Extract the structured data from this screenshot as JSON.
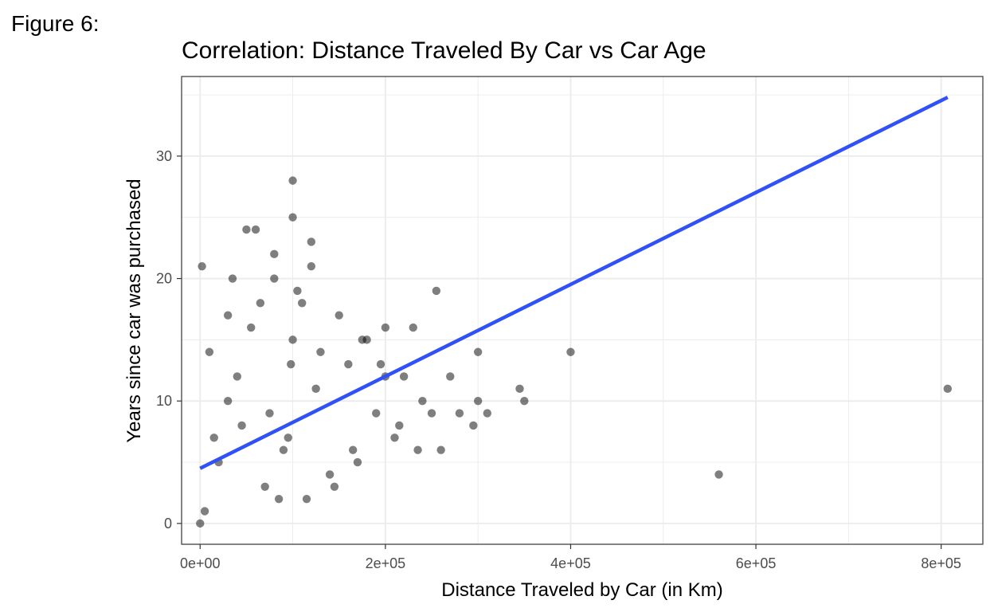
{
  "figure_label": "Figure 6:",
  "chart_data": {
    "type": "scatter",
    "title": "Correlation: Distance Traveled By Car vs Car Age",
    "xlabel": "Distance Traveled by Car (in Km)",
    "ylabel": "Years since car was purchased",
    "xlim": [
      -20000,
      845000
    ],
    "ylim": [
      -1.7,
      36.5
    ],
    "x_ticks": [
      0,
      200000,
      400000,
      600000,
      800000
    ],
    "x_tick_labels": [
      "0e+00",
      "2e+05",
      "4e+05",
      "6e+05",
      "8e+05"
    ],
    "y_ticks": [
      0,
      10,
      20,
      30
    ],
    "y_tick_labels": [
      "0",
      "10",
      "20",
      "30"
    ],
    "grid": true,
    "legend": "none",
    "colors": {
      "points": "#000000",
      "fit_line": "#3050f8",
      "grid": "#ebebeb",
      "panel_border": "#333333"
    },
    "x": [
      0,
      2000,
      10000,
      30000,
      50000,
      80000,
      100000,
      120000,
      150000,
      180000,
      200000,
      230000,
      255000,
      35000,
      60000,
      100000,
      100000,
      98000,
      120000,
      80000,
      110000,
      130000,
      160000,
      175000,
      200000,
      220000,
      240000,
      270000,
      280000,
      300000,
      300000,
      295000,
      310000,
      345000,
      350000,
      400000,
      560000,
      807000,
      20000,
      45000,
      70000,
      90000,
      140000,
      165000,
      190000,
      210000,
      260000,
      5000,
      15000,
      40000,
      65000,
      85000,
      105000,
      125000,
      145000,
      170000,
      195000,
      215000,
      235000,
      250000,
      30000,
      55000,
      75000,
      95000,
      115000
    ],
    "y": [
      0,
      21,
      14,
      17,
      24,
      22,
      28,
      23,
      17,
      15,
      16,
      16,
      19,
      20,
      24,
      25,
      15,
      13,
      21,
      20,
      18,
      14,
      13,
      15,
      12,
      12,
      10,
      12,
      9,
      14,
      10,
      8,
      9,
      11,
      10,
      14,
      4,
      11,
      5,
      8,
      3,
      6,
      4,
      6,
      9,
      7,
      6,
      1,
      7,
      12,
      18,
      2,
      19,
      11,
      3,
      5,
      13,
      8,
      6,
      9,
      10,
      16,
      9,
      7,
      2
    ],
    "fit_line": {
      "x": [
        0,
        807000
      ],
      "y": [
        4.5,
        34.8
      ]
    }
  }
}
